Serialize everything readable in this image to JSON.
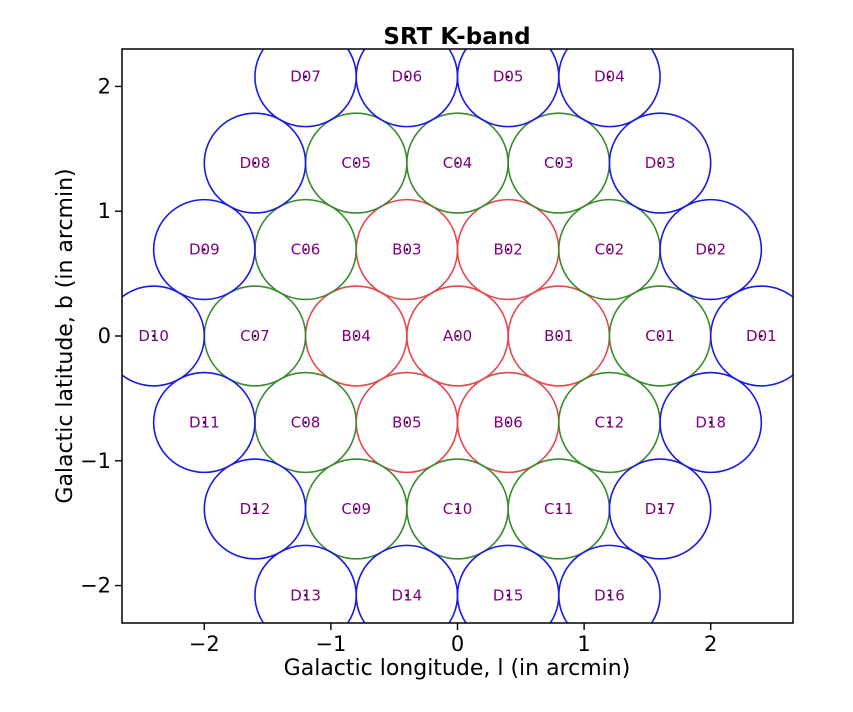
{
  "chart_data": {
    "type": "scatter",
    "title": "SRT K-band",
    "xlabel": "Galactic longitude, l (in arcmin)",
    "ylabel": "Galactic latitude, b (in arcmin)",
    "xlim": [
      -2.65,
      2.65
    ],
    "ylim": [
      -2.3,
      2.3
    ],
    "xticks": [
      -2,
      -1,
      0,
      1,
      2
    ],
    "yticks": [
      -2,
      -1,
      0,
      1,
      2
    ],
    "xtick_labels": [
      "−2",
      "−1",
      "0",
      "1",
      "2"
    ],
    "ytick_labels": [
      "−2",
      "−1",
      "0",
      "1",
      "2"
    ],
    "beam_radius": 0.4,
    "ring_colors": {
      "A": "#e8474a",
      "B": "#e8474a",
      "C": "#3a8a2e",
      "D": "#1a1ae6"
    },
    "label_color": "#800080",
    "beams": [
      {
        "label": "A00",
        "ring": "A",
        "x": 0.0,
        "y": 0.0
      },
      {
        "label": "B01",
        "ring": "B",
        "x": 0.8,
        "y": 0.0
      },
      {
        "label": "B02",
        "ring": "B",
        "x": 0.4,
        "y": 0.693
      },
      {
        "label": "B03",
        "ring": "B",
        "x": -0.4,
        "y": 0.693
      },
      {
        "label": "B04",
        "ring": "B",
        "x": -0.8,
        "y": 0.0
      },
      {
        "label": "B05",
        "ring": "B",
        "x": -0.4,
        "y": -0.693
      },
      {
        "label": "B06",
        "ring": "B",
        "x": 0.4,
        "y": -0.693
      },
      {
        "label": "C01",
        "ring": "C",
        "x": 1.6,
        "y": 0.0
      },
      {
        "label": "C02",
        "ring": "C",
        "x": 1.2,
        "y": 0.693
      },
      {
        "label": "C03",
        "ring": "C",
        "x": 0.8,
        "y": 1.386
      },
      {
        "label": "C04",
        "ring": "C",
        "x": 0.0,
        "y": 1.386
      },
      {
        "label": "C05",
        "ring": "C",
        "x": -0.8,
        "y": 1.386
      },
      {
        "label": "C06",
        "ring": "C",
        "x": -1.2,
        "y": 0.693
      },
      {
        "label": "C07",
        "ring": "C",
        "x": -1.6,
        "y": 0.0
      },
      {
        "label": "C08",
        "ring": "C",
        "x": -1.2,
        "y": -0.693
      },
      {
        "label": "C09",
        "ring": "C",
        "x": -0.8,
        "y": -1.386
      },
      {
        "label": "C10",
        "ring": "C",
        "x": 0.0,
        "y": -1.386
      },
      {
        "label": "C11",
        "ring": "C",
        "x": 0.8,
        "y": -1.386
      },
      {
        "label": "C12",
        "ring": "C",
        "x": 1.2,
        "y": -0.693
      },
      {
        "label": "D01",
        "ring": "D",
        "x": 2.4,
        "y": 0.0
      },
      {
        "label": "D02",
        "ring": "D",
        "x": 2.0,
        "y": 0.693
      },
      {
        "label": "D03",
        "ring": "D",
        "x": 1.6,
        "y": 1.386
      },
      {
        "label": "D04",
        "ring": "D",
        "x": 1.2,
        "y": 2.078
      },
      {
        "label": "D05",
        "ring": "D",
        "x": 0.4,
        "y": 2.078
      },
      {
        "label": "D06",
        "ring": "D",
        "x": -0.4,
        "y": 2.078
      },
      {
        "label": "D07",
        "ring": "D",
        "x": -1.2,
        "y": 2.078
      },
      {
        "label": "D08",
        "ring": "D",
        "x": -1.6,
        "y": 1.386
      },
      {
        "label": "D09",
        "ring": "D",
        "x": -2.0,
        "y": 0.693
      },
      {
        "label": "D10",
        "ring": "D",
        "x": -2.4,
        "y": 0.0
      },
      {
        "label": "D11",
        "ring": "D",
        "x": -2.0,
        "y": -0.693
      },
      {
        "label": "D12",
        "ring": "D",
        "x": -1.6,
        "y": -1.386
      },
      {
        "label": "D13",
        "ring": "D",
        "x": -1.2,
        "y": -2.078
      },
      {
        "label": "D14",
        "ring": "D",
        "x": -0.4,
        "y": -2.078
      },
      {
        "label": "D15",
        "ring": "D",
        "x": 0.4,
        "y": -2.078
      },
      {
        "label": "D16",
        "ring": "D",
        "x": 1.2,
        "y": -2.078
      },
      {
        "label": "D17",
        "ring": "D",
        "x": 1.6,
        "y": -1.386
      },
      {
        "label": "D18",
        "ring": "D",
        "x": 2.0,
        "y": -0.693
      }
    ]
  }
}
